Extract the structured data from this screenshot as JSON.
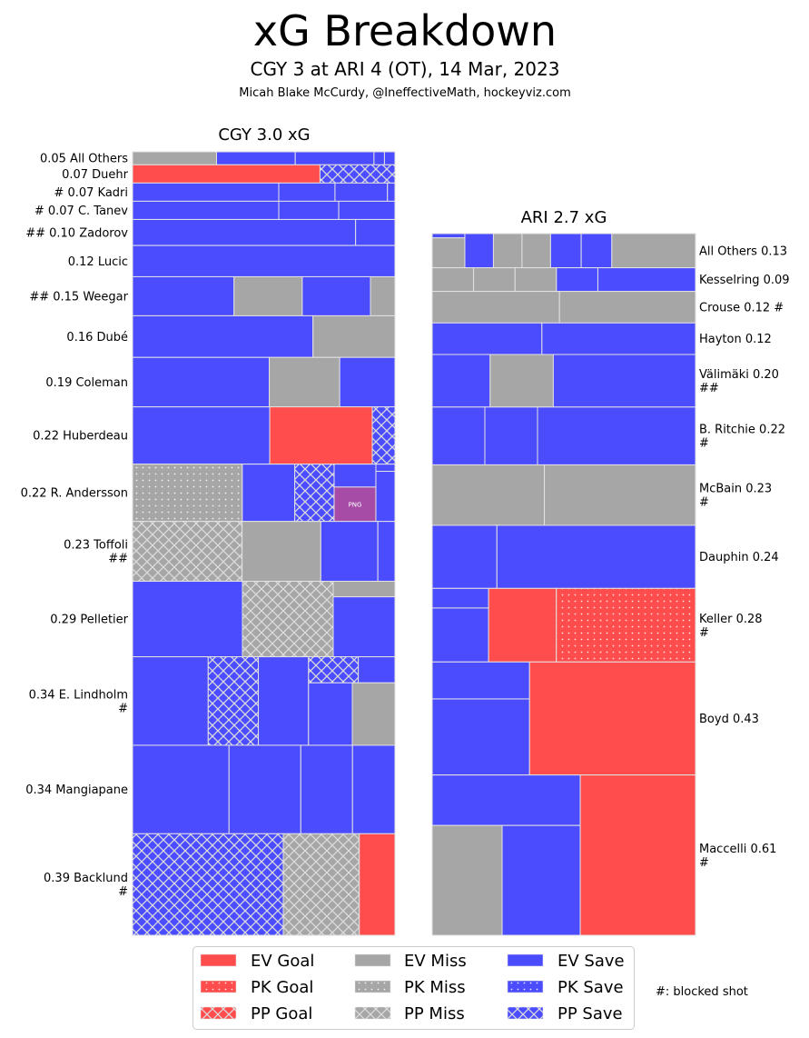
{
  "header": {
    "title": "xG Breakdown",
    "subtitle": "CGY 3 at ARI 4 (OT), 14 Mar, 2023",
    "byline": "Micah Blake McCurdy, @IneffectiveMath, hockeyviz.com"
  },
  "colors": {
    "Goal": "#FF4C4C",
    "Miss": "#A6A6A6",
    "Save": "#4C4CFF",
    "Other": "#A64CA6",
    "cell_border": "#E2E2E2",
    "hatch": "#DCDCDC"
  },
  "chart_data": {
    "type": "bar",
    "variant": "treemap",
    "title": "xG Breakdown",
    "subtitle": "CGY 3 at ARI 4 (OT), 14 Mar, 2023",
    "value_unit": "xG",
    "legend": {
      "position": "bottom-center",
      "items": [
        "EV Goal",
        "PK Goal",
        "PP Goal",
        "EV Miss",
        "PK Miss",
        "PP Miss",
        "EV Save",
        "PK Save",
        "PP Save"
      ],
      "note": "#: blocked shot"
    },
    "panels": [
      {
        "team": "CGY",
        "title": "CGY 3.0 xG",
        "total_xg": 3.0,
        "label_side": "left",
        "players": [
          {
            "name": "All Others",
            "xg": 0.05,
            "label": [
              "0.05 All Others"
            ],
            "shots": [
              [
                "EV Miss",
                0.016
              ],
              [
                "EV Save",
                0.015
              ],
              [
                "EV Save",
                0.015
              ],
              [
                "EV Save",
                0.002
              ],
              [
                "EV Save",
                0.002
              ]
            ]
          },
          {
            "name": "Duehr",
            "xg": 0.07,
            "label": [
              "0.07 Duehr"
            ],
            "shots": [
              [
                "EV Goal",
                0.05
              ],
              [
                "PP Save",
                0.02
              ]
            ]
          },
          {
            "name": "Kadri",
            "xg": 0.07,
            "label": [
              "# 0.07 Kadri"
            ],
            "shots": [
              [
                "EV Save",
                0.039
              ],
              [
                "EV Save",
                0.015
              ],
              [
                "EV Save",
                0.014
              ],
              [
                "EV Save",
                0.002
              ]
            ]
          },
          {
            "name": "C. Tanev",
            "xg": 0.07,
            "label": [
              "# 0.07 C. Tanev"
            ],
            "shots": [
              [
                "EV Save",
                0.039
              ],
              [
                "EV Save",
                0.016
              ],
              [
                "EV Save",
                0.015
              ]
            ]
          },
          {
            "name": "Zadorov",
            "xg": 0.1,
            "label": [
              "## 0.10 Zadorov"
            ],
            "shots": [
              [
                "EV Save",
                0.085
              ],
              [
                "EV Save",
                0.015
              ]
            ]
          },
          {
            "name": "Lucic",
            "xg": 0.12,
            "label": [
              "0.12 Lucic"
            ],
            "shots": [
              [
                "EV Save",
                0.12
              ]
            ]
          },
          {
            "name": "Weegar",
            "xg": 0.15,
            "label": [
              "## 0.15 Weegar"
            ],
            "shots": [
              [
                "EV Save",
                0.058
              ],
              [
                "EV Miss",
                0.039
              ],
              [
                "EV Save",
                0.039
              ],
              [
                "EV Miss",
                0.014
              ]
            ]
          },
          {
            "name": "Dubé",
            "xg": 0.16,
            "label": [
              "0.16 Dubé"
            ],
            "shots": [
              [
                "EV Save",
                0.11
              ],
              [
                "EV Miss",
                0.05
              ]
            ]
          },
          {
            "name": "Coleman",
            "xg": 0.19,
            "label": [
              "0.19 Coleman"
            ],
            "shots": [
              [
                "EV Save",
                0.099
              ],
              [
                "EV Miss",
                0.051
              ],
              [
                "EV Save",
                0.04
              ]
            ]
          },
          {
            "name": "Huberdeau",
            "xg": 0.22,
            "label": [
              "0.22 Huberdeau"
            ],
            "shots": [
              [
                "EV Save",
                0.115
              ],
              [
                "EV Goal",
                0.086
              ],
              [
                "PP Save",
                0.019
              ]
            ]
          },
          {
            "name": "R. Andersson",
            "xg": 0.22,
            "label": [
              "0.22 R. Andersson"
            ],
            "shots": [
              [
                "PK Miss",
                0.092
              ],
              [
                "EV Save",
                0.044
              ],
              [
                "PP Save",
                0.033
              ],
              {
                "g": [
                  [
                    "EV Save",
                    0.014
                  ],
                  [
                    "Other",
                    0.021,
                    "PNG"
                  ]
                ]
              },
              {
                "g": [
                  [
                    "EV Save",
                    0.002
                  ],
                  [
                    "EV Save",
                    0.014
                  ]
                ]
              }
            ]
          },
          {
            "name": "Toffoli",
            "xg": 0.23,
            "label": [
              "0.23 Toffoli",
              "##"
            ],
            "shots": [
              [
                "PP Miss",
                0.096
              ],
              [
                "EV Miss",
                0.069
              ],
              [
                "EV Save",
                0.05
              ],
              [
                "EV Save",
                0.015
              ]
            ]
          },
          {
            "name": "Pelletier",
            "xg": 0.29,
            "label": [
              "0.29 Pelletier"
            ],
            "shots": [
              [
                "EV Save",
                0.121
              ],
              [
                "PP Miss",
                0.1
              ],
              {
                "g": [
                  [
                    "EV Miss",
                    0.014
                  ],
                  [
                    "EV Save",
                    0.054
                  ]
                ]
              }
            ]
          },
          {
            "name": "E. Lindholm",
            "xg": 0.34,
            "label": [
              "0.34 E. Lindholm",
              "#"
            ],
            "shots": [
              [
                "EV Save",
                0.098
              ],
              [
                "PP Save",
                0.065
              ],
              [
                "EV Save",
                0.065
              ],
              {
                "g": [
                  {
                    "g": [
                      [
                        "PP Save",
                        0.019
                      ],
                      [
                        "EV Save",
                        0.014
                      ]
                    ]
                  },
                  {
                    "g": [
                      [
                        "EV Save",
                        0.04
                      ],
                      [
                        "EV Miss",
                        0.039
                      ]
                    ]
                  }
                ]
              }
            ]
          },
          {
            "name": "Mangiapane",
            "xg": 0.34,
            "label": [
              "0.34 Mangiapane"
            ],
            "shots": [
              [
                "EV Save",
                0.125
              ],
              [
                "EV Save",
                0.093
              ],
              [
                "EV Save",
                0.067
              ],
              [
                "EV Save",
                0.055
              ]
            ]
          },
          {
            "name": "Backlund",
            "xg": 0.39,
            "label": [
              "0.39 Backlund",
              "#"
            ],
            "shots": [
              [
                "PP Save",
                0.224
              ],
              [
                "PP Miss",
                0.113
              ],
              [
                "EV Goal",
                0.053
              ]
            ]
          }
        ]
      },
      {
        "team": "ARI",
        "title": "ARI 2.7 xG",
        "total_xg": 2.7,
        "label_side": "right",
        "players": [
          {
            "name": "All Others",
            "xg": 0.13,
            "label": [
              "All Others 0.13"
            ],
            "shots": [
              {
                "g": [
                  [
                    "EV Save",
                    0.002
                  ],
                  [
                    "EV Miss",
                    0.014
                  ]
                ]
              },
              [
                "EV Save",
                0.014
              ],
              [
                "EV Miss",
                0.014
              ],
              [
                "EV Miss",
                0.014
              ],
              [
                "EV Save",
                0.015
              ],
              [
                "EV Save",
                0.015
              ],
              [
                "EV Miss",
                0.041
              ]
            ]
          },
          {
            "name": "Kesselring",
            "xg": 0.09,
            "label": [
              "Kesselring 0.09"
            ],
            "shots": [
              [
                "EV Miss",
                0.014
              ],
              [
                "EV Miss",
                0.014
              ],
              [
                "EV Miss",
                0.014
              ],
              [
                "EV Save",
                0.014
              ],
              [
                "EV Save",
                0.033
              ]
            ]
          },
          {
            "name": "Crouse",
            "xg": 0.12,
            "label": [
              "Crouse 0.12 #"
            ],
            "shots": [
              [
                "EV Miss",
                0.058
              ],
              [
                "EV Miss",
                0.062
              ]
            ]
          },
          {
            "name": "Hayton",
            "xg": 0.12,
            "label": [
              "Hayton 0.12"
            ],
            "shots": [
              [
                "EV Save",
                0.05
              ],
              [
                "EV Save",
                0.07
              ]
            ]
          },
          {
            "name": "Välimäki",
            "xg": 0.2,
            "label": [
              "Välimäki 0.20",
              "##"
            ],
            "shots": [
              [
                "EV Save",
                0.044
              ],
              [
                "EV Miss",
                0.048
              ],
              [
                "EV Save",
                0.108
              ]
            ]
          },
          {
            "name": "B. Ritchie",
            "xg": 0.22,
            "label": [
              "B. Ritchie 0.22",
              "#"
            ],
            "shots": [
              [
                "EV Save",
                0.044
              ],
              [
                "EV Save",
                0.044
              ],
              [
                "EV Save",
                0.132
              ]
            ]
          },
          {
            "name": "McBain",
            "xg": 0.23,
            "label": [
              "McBain 0.23",
              "#"
            ],
            "shots": [
              [
                "EV Miss",
                0.098
              ],
              [
                "EV Miss",
                0.132
              ]
            ]
          },
          {
            "name": "Dauphin",
            "xg": 0.24,
            "label": [
              "Dauphin 0.24"
            ],
            "shots": [
              [
                "EV Save",
                0.059
              ],
              [
                "EV Save",
                0.181
              ]
            ]
          },
          {
            "name": "Keller",
            "xg": 0.28,
            "label": [
              "Keller 0.28",
              "#"
            ],
            "shots": [
              {
                "g": [
                  [
                    "EV Save",
                    0.016
                  ],
                  [
                    "EV Save",
                    0.044
                  ]
                ]
              },
              [
                "EV Goal",
                0.072
              ],
              [
                "PK Goal",
                0.148
              ]
            ]
          },
          {
            "name": "Boyd",
            "xg": 0.43,
            "label": [
              "Boyd 0.43"
            ],
            "shots": [
              {
                "g": [
                  [
                    "EV Save",
                    0.052
                  ],
                  [
                    "EV Save",
                    0.107
                  ]
                ]
              },
              [
                "EV Goal",
                0.271
              ]
            ]
          },
          {
            "name": "Maccelli",
            "xg": 0.61,
            "label": [
              "Maccelli 0.61",
              "#"
            ],
            "shots": [
              {
                "g": [
                  [
                    "EV Save",
                    0.108
                  ],
                  {
                    "g": [
                      [
                        "EV Miss",
                        0.111
                      ],
                      [
                        "EV Save",
                        0.124
                      ]
                    ]
                  }
                ]
              },
              [
                "EV Goal",
                0.267
              ]
            ]
          }
        ]
      }
    ]
  }
}
